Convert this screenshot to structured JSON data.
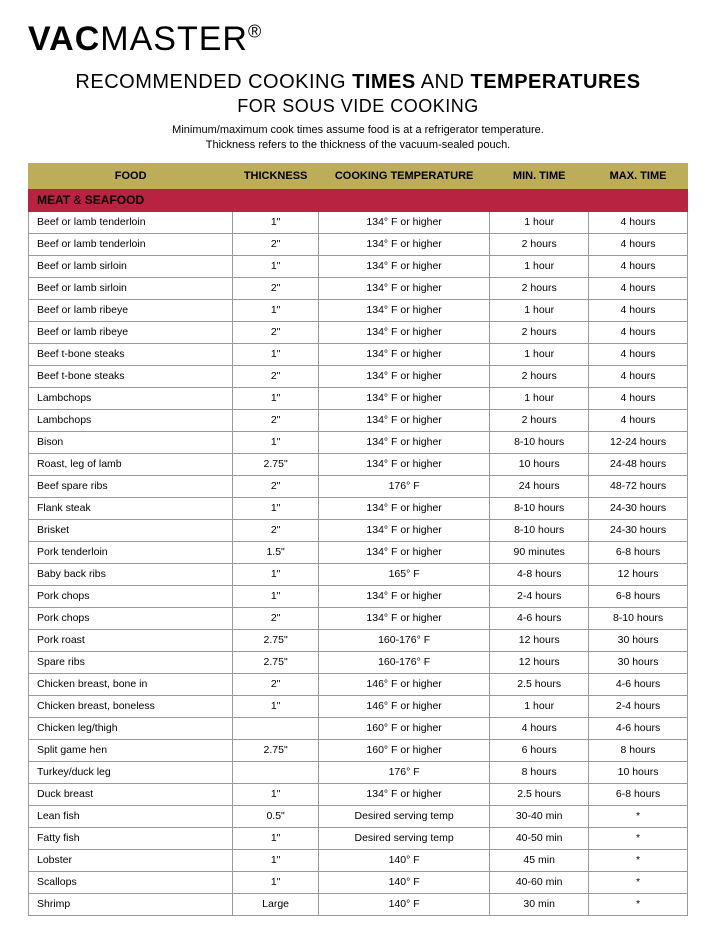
{
  "logo": {
    "bold": "VAC",
    "light": "MASTER",
    "reg": "®"
  },
  "title": {
    "line1_pre": "RECOMMENDED COOKING ",
    "line1_b1": "TIMES",
    "line1_mid": " AND ",
    "line1_b2": "TEMPERATURES",
    "line2": "FOR SOUS VIDE COOKING"
  },
  "note": {
    "l1": "Minimum/maximum cook times assume food is at a refrigerator temperature.",
    "l2": "Thickness refers to the thickness of the vacuum-sealed pouch."
  },
  "columns": [
    "FOOD",
    "THICKNESS",
    "COOKING TEMPERATURE",
    "MIN. TIME",
    "MAX. TIME"
  ],
  "section": {
    "bold1": "MEAT",
    "amp": " & ",
    "rest": "SEAFOOD"
  },
  "rows": [
    [
      "Beef or lamb tenderloin",
      "1\"",
      "134° F or higher",
      "1 hour",
      "4 hours"
    ],
    [
      "Beef or lamb tenderloin",
      "2\"",
      "134° F or higher",
      "2 hours",
      "4 hours"
    ],
    [
      "Beef or lamb sirloin",
      "1\"",
      "134° F or higher",
      "1 hour",
      "4 hours"
    ],
    [
      "Beef or lamb sirloin",
      "2\"",
      "134° F or higher",
      "2 hours",
      "4 hours"
    ],
    [
      "Beef or lamb ribeye",
      "1\"",
      "134° F or higher",
      "1 hour",
      "4 hours"
    ],
    [
      "Beef or lamb ribeye",
      "2\"",
      "134° F or higher",
      "2 hours",
      "4 hours"
    ],
    [
      "Beef t-bone steaks",
      "1\"",
      "134° F or higher",
      "1 hour",
      "4 hours"
    ],
    [
      "Beef t-bone steaks",
      "2\"",
      "134° F or higher",
      "2 hours",
      "4 hours"
    ],
    [
      "Lambchops",
      "1\"",
      "134° F or higher",
      "1 hour",
      "4 hours"
    ],
    [
      "Lambchops",
      "2\"",
      "134° F or higher",
      "2 hours",
      "4 hours"
    ],
    [
      "Bison",
      "1\"",
      "134° F or higher",
      "8-10 hours",
      "12-24 hours"
    ],
    [
      "Roast, leg of lamb",
      "2.75\"",
      "134° F or higher",
      "10 hours",
      "24-48 hours"
    ],
    [
      "Beef spare ribs",
      "2\"",
      "176° F",
      "24 hours",
      "48-72 hours"
    ],
    [
      "Flank steak",
      "1\"",
      "134° F or higher",
      "8-10 hours",
      "24-30 hours"
    ],
    [
      "Brisket",
      "2\"",
      "134° F or higher",
      "8-10 hours",
      "24-30 hours"
    ],
    [
      "Pork tenderloin",
      "1.5\"",
      "134° F or higher",
      "90 minutes",
      "6-8 hours"
    ],
    [
      "Baby back ribs",
      "1\"",
      "165° F",
      "4-8 hours",
      "12 hours"
    ],
    [
      "Pork chops",
      "1\"",
      "134° F or higher",
      "2-4 hours",
      "6-8 hours"
    ],
    [
      "Pork chops",
      "2\"",
      "134° F or higher",
      "4-6 hours",
      "8-10 hours"
    ],
    [
      "Pork roast",
      "2.75\"",
      "160-176° F",
      "12 hours",
      "30 hours"
    ],
    [
      "Spare ribs",
      "2.75\"",
      "160-176° F",
      "12 hours",
      "30 hours"
    ],
    [
      "Chicken breast, bone in",
      "2\"",
      "146° F or higher",
      "2.5 hours",
      "4-6 hours"
    ],
    [
      "Chicken breast, boneless",
      "1\"",
      "146° F or higher",
      "1 hour",
      "2-4 hours"
    ],
    [
      "Chicken leg/thigh",
      "",
      "160° F or higher",
      "4 hours",
      "4-6 hours"
    ],
    [
      "Split game hen",
      "2.75\"",
      "160° F or higher",
      "6 hours",
      "8 hours"
    ],
    [
      "Turkey/duck leg",
      "",
      "176° F",
      "8 hours",
      "10 hours"
    ],
    [
      "Duck breast",
      "1\"",
      "134° F or higher",
      "2.5 hours",
      "6-8 hours"
    ],
    [
      "Lean fish",
      "0.5\"",
      "Desired serving temp",
      "30-40 min",
      "*"
    ],
    [
      "Fatty fish",
      "1\"",
      "Desired serving temp",
      "40-50 min",
      "*"
    ],
    [
      "Lobster",
      "1\"",
      "140° F",
      "45 min",
      "*"
    ],
    [
      "Scallops",
      "1\"",
      "140° F",
      "40-60 min",
      "*"
    ],
    [
      "Shrimp",
      "Large",
      "140° F",
      "30 min",
      "*"
    ]
  ],
  "colors": {
    "header_bg": "#bdac5a",
    "section_bg": "#b72340",
    "border": "#999999"
  }
}
